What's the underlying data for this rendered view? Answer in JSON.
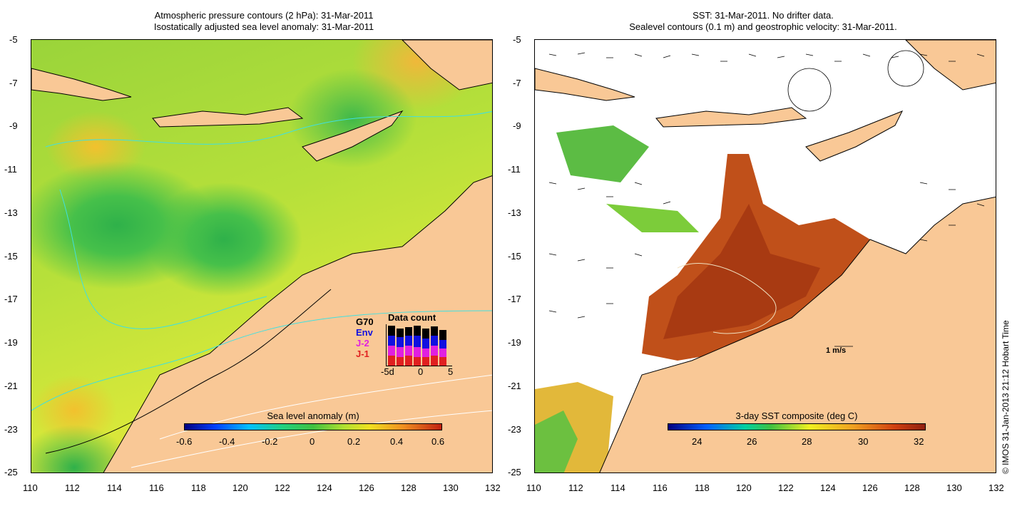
{
  "left_panel": {
    "title_line1": "Atmospheric pressure contours (2 hPa): 31-Mar-2011",
    "title_line2": "Isostatically adjusted sea level anomaly: 31-Mar-2011",
    "colorbar_title": "Sea level anomaly (m)",
    "colorbar_ticks": [
      "-0.6",
      "-0.4",
      "-0.2",
      "0",
      "0.2",
      "0.4",
      "0.6"
    ],
    "inset": {
      "title": "Data count",
      "keys": [
        "G70",
        "Env",
        "J-2",
        "J-1"
      ],
      "key_colors": [
        "#000000",
        "#1010e0",
        "#e020e0",
        "#e02020"
      ],
      "x_ticks": [
        "-5d",
        "0",
        "5"
      ]
    }
  },
  "right_panel": {
    "title_line1": "SST: 31-Mar-2011. No drifter data.",
    "title_line2": "Sealevel contours (0.1 m) and geostrophic velocity: 31-Mar-2011.",
    "colorbar_title": "3-day SST composite (deg C)",
    "colorbar_ticks": [
      "24",
      "26",
      "28",
      "30",
      "32"
    ],
    "velocity_scale": "1 m/s"
  },
  "y_ticks": [
    "-5",
    "-7",
    "-9",
    "-11",
    "-13",
    "-15",
    "-17",
    "-19",
    "-21",
    "-23",
    "-25"
  ],
  "x_ticks": [
    "110",
    "112",
    "114",
    "116",
    "118",
    "120",
    "122",
    "124",
    "126",
    "128",
    "130",
    "132"
  ],
  "credit": "© IMOS 31-Jan-2013 21:12 Hobart Time",
  "colors": {
    "land": "#f9c896",
    "contour_cyan": "#40e0e0"
  }
}
